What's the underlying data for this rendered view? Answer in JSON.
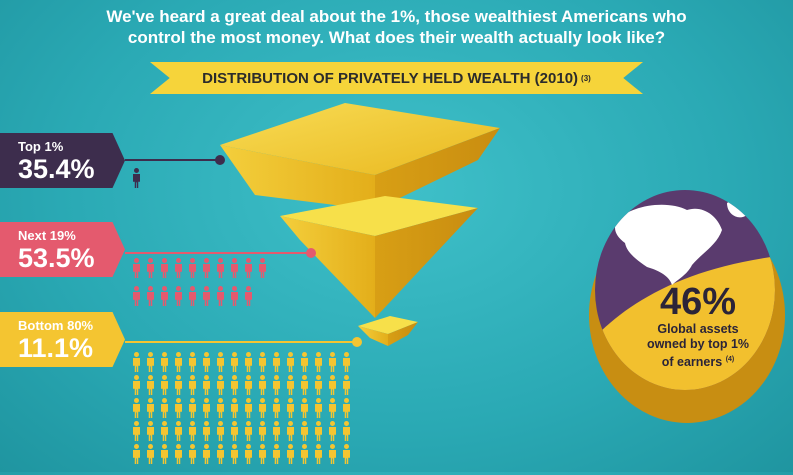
{
  "intro": {
    "line1": "We've heard a great deal about the 1%, those wealthiest Americans who",
    "line2": "control the most money. What does their wealth actually look like?"
  },
  "banner": {
    "title": "DISTRIBUTION OF PRIVATELY HELD WEALTH (2010)",
    "footnote": "(3)"
  },
  "chart_data": {
    "type": "table",
    "title": "DISTRIBUTION OF PRIVATELY HELD WEALTH (2010)",
    "rows": [
      {
        "label": "Top 1%",
        "value": "35.4%",
        "color": "#3d2d4d",
        "people_icons": 1
      },
      {
        "label": "Next 19%",
        "value": "53.5%",
        "color": "#e45a6e",
        "people_icons": 19
      },
      {
        "label": "Bottom 80%",
        "value": "11.1%",
        "color": "#f4c531",
        "people_icons": 80
      }
    ]
  },
  "coin": {
    "value": "46%",
    "caption1": "Global assets",
    "caption2": "owned by top 1%",
    "caption3": "of earners",
    "footnote": "(4)",
    "colors": {
      "purple": "#5a3b6e",
      "gold": "#f2c02e"
    }
  }
}
